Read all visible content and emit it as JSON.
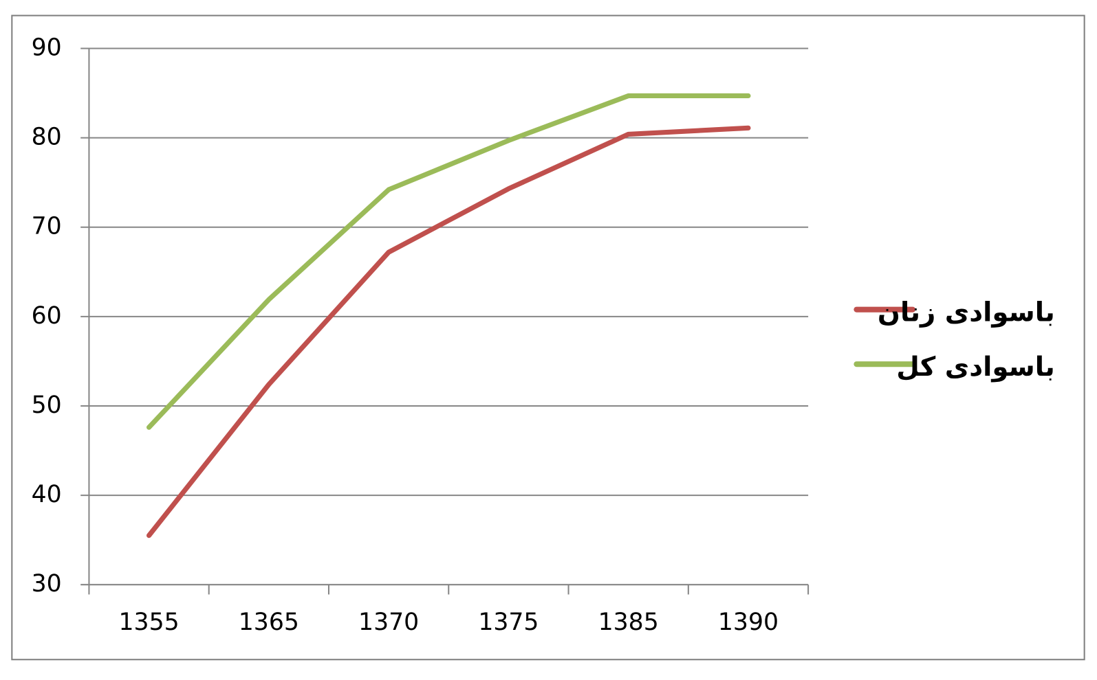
{
  "chart_data": {
    "type": "line",
    "categories": [
      "1355",
      "1365",
      "1370",
      "1375",
      "1385",
      "1390"
    ],
    "series": [
      {
        "name": "باسوادی زنان",
        "color": "#c0504d",
        "values": [
          35.5,
          52.4,
          67.2,
          74.3,
          80.4,
          81.1
        ]
      },
      {
        "name": "باسوادی کل",
        "color": "#9bbb59",
        "values": [
          47.6,
          61.9,
          74.2,
          79.7,
          84.7,
          84.7
        ]
      }
    ],
    "ylim": [
      30,
      90
    ],
    "yticks": [
      30,
      40,
      50,
      60,
      70,
      80,
      90
    ],
    "grid": true,
    "legend": "right"
  }
}
